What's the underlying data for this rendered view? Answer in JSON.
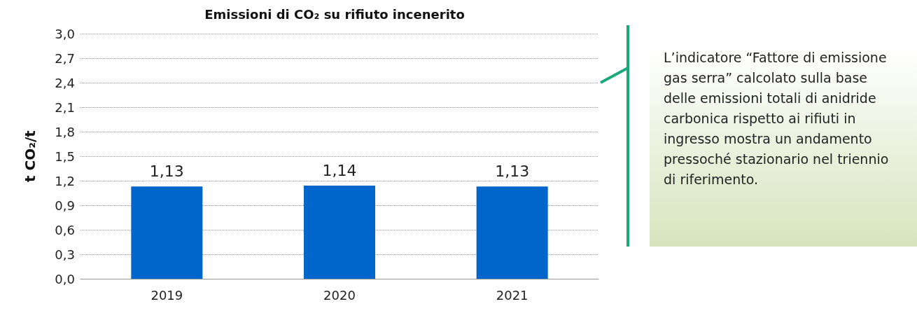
{
  "chart_data": {
    "type": "bar",
    "title": "Emissioni di CO₂ su rifiuto incenerito",
    "ylabel": "t CO₂/t",
    "categories": [
      "2019",
      "2020",
      "2021"
    ],
    "series": [
      {
        "color": "#0066cc",
        "values": [
          1.13,
          1.14,
          1.13
        ],
        "value_labels": [
          "1,13",
          "1,14",
          "1,13"
        ]
      }
    ],
    "ylim": [
      0,
      3
    ],
    "yticks": [
      {
        "value": 0,
        "label": "0,0"
      },
      {
        "value": 0.3,
        "label": "0,3"
      },
      {
        "value": 0.6,
        "label": "0,6"
      },
      {
        "value": 0.9,
        "label": "0,9"
      },
      {
        "value": 1.2,
        "label": "1,2"
      },
      {
        "value": 1.5,
        "label": "1,5"
      },
      {
        "value": 1.8,
        "label": "1,8"
      },
      {
        "value": 2.1,
        "label": "2,1"
      },
      {
        "value": 2.4,
        "label": "2,4"
      },
      {
        "value": 2.7,
        "label": "2,7"
      },
      {
        "value": 3,
        "label": "3,0"
      }
    ],
    "grid": "y",
    "annotations": [
      "L’indicatore “Fattore di emissione gas serra” calcolato sulla base delle emissioni totali di anidride carbonica rispetto ai rifiuti in ingresso mostra un andamento pressoché stazionario nel triennio di riferimento."
    ]
  }
}
